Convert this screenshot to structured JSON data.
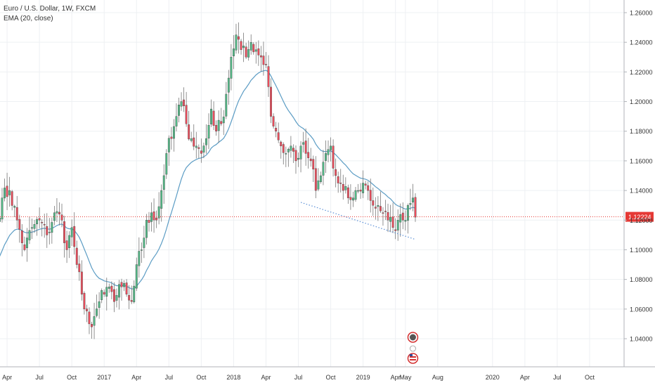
{
  "legend": {
    "title": "Euro / U.S. Dollar, 1W, FXCM",
    "indicator": "EMA (20, close)"
  },
  "colors": {
    "up": "#53b987",
    "down": "#eb4d5c",
    "ema": "#5b9cc4",
    "price_line": "#e53935",
    "trendline": "#5b8fd6",
    "grid": "#eef0f3",
    "axis_text": "#333333"
  },
  "chart_data": {
    "type": "candlestick",
    "symbol": "Euro / U.S. Dollar",
    "interval": "1W",
    "source": "FXCM",
    "ylim": [
      1.02,
      1.27
    ],
    "y_ticks": [
      1.26,
      1.24,
      1.22,
      1.2,
      1.18,
      1.16,
      1.14,
      1.12,
      1.1,
      1.08,
      1.06,
      1.04
    ],
    "y_tick_labels": [
      "1.26000",
      "1.24000",
      "1.22000",
      "1.20000",
      "1.18000",
      "1.16000",
      "1.14000",
      "1.12000",
      "1.10000",
      "1.08000",
      "1.06000",
      "1.04000"
    ],
    "x_ticks": [
      {
        "label": "Apr",
        "week": 4
      },
      {
        "label": "Jul",
        "week": 17
      },
      {
        "label": "Oct",
        "week": 30
      },
      {
        "label": "2017",
        "week": 43
      },
      {
        "label": "Apr",
        "week": 56
      },
      {
        "label": "Jul",
        "week": 69
      },
      {
        "label": "Oct",
        "week": 82
      },
      {
        "label": "2018",
        "week": 95
      },
      {
        "label": "Apr",
        "week": 108
      },
      {
        "label": "Jul",
        "week": 121
      },
      {
        "label": "Oct",
        "week": 134
      },
      {
        "label": "2019",
        "week": 147
      },
      {
        "label": "Apr",
        "week": 160
      },
      {
        "label": "May",
        "week": 164
      },
      {
        "label": "Aug",
        "week": 177
      },
      {
        "label": "2020",
        "week": 199
      },
      {
        "label": "Apr",
        "week": 212
      },
      {
        "label": "Jul",
        "week": 225
      },
      {
        "label": "Oct",
        "week": 238
      }
    ],
    "x_range_weeks": [
      2,
      251
    ],
    "last_price": 1.12224,
    "last_price_label": "1.12224",
    "close_anchors": [
      [
        0,
        1.12
      ],
      [
        2,
        1.135
      ],
      [
        5,
        1.14
      ],
      [
        8,
        1.12
      ],
      [
        11,
        1.1
      ],
      [
        14,
        1.115
      ],
      [
        17,
        1.12
      ],
      [
        20,
        1.11
      ],
      [
        23,
        1.125
      ],
      [
        26,
        1.12
      ],
      [
        28,
        1.1
      ],
      [
        30,
        1.115
      ],
      [
        32,
        1.09
      ],
      [
        34,
        1.07
      ],
      [
        35,
        1.06
      ],
      [
        37,
        1.05
      ],
      [
        39,
        1.055
      ],
      [
        41,
        1.065
      ],
      [
        43,
        1.07
      ],
      [
        45,
        1.075
      ],
      [
        47,
        1.065
      ],
      [
        50,
        1.075
      ],
      [
        52,
        1.07
      ],
      [
        54,
        1.065
      ],
      [
        56,
        1.09
      ],
      [
        58,
        1.1
      ],
      [
        60,
        1.12
      ],
      [
        62,
        1.125
      ],
      [
        64,
        1.12
      ],
      [
        66,
        1.14
      ],
      [
        68,
        1.165
      ],
      [
        70,
        1.175
      ],
      [
        72,
        1.19
      ],
      [
        74,
        1.2
      ],
      [
        76,
        1.185
      ],
      [
        78,
        1.175
      ],
      [
        80,
        1.17
      ],
      [
        82,
        1.165
      ],
      [
        84,
        1.175
      ],
      [
        86,
        1.195
      ],
      [
        88,
        1.18
      ],
      [
        90,
        1.185
      ],
      [
        92,
        1.205
      ],
      [
        94,
        1.23
      ],
      [
        96,
        1.245
      ],
      [
        98,
        1.235
      ],
      [
        100,
        1.23
      ],
      [
        102,
        1.24
      ],
      [
        104,
        1.235
      ],
      [
        106,
        1.23
      ],
      [
        108,
        1.225
      ],
      [
        109,
        1.21
      ],
      [
        110,
        1.19
      ],
      [
        112,
        1.18
      ],
      [
        114,
        1.17
      ],
      [
        116,
        1.165
      ],
      [
        118,
        1.17
      ],
      [
        120,
        1.16
      ],
      [
        122,
        1.17
      ],
      [
        124,
        1.165
      ],
      [
        126,
        1.16
      ],
      [
        128,
        1.14
      ],
      [
        130,
        1.15
      ],
      [
        132,
        1.165
      ],
      [
        134,
        1.17
      ],
      [
        135,
        1.155
      ],
      [
        137,
        1.145
      ],
      [
        139,
        1.14
      ],
      [
        141,
        1.135
      ],
      [
        143,
        1.135
      ],
      [
        145,
        1.14
      ],
      [
        147,
        1.145
      ],
      [
        149,
        1.14
      ],
      [
        151,
        1.13
      ],
      [
        153,
        1.13
      ],
      [
        155,
        1.125
      ],
      [
        157,
        1.12
      ],
      [
        159,
        1.115
      ],
      [
        161,
        1.12
      ],
      [
        163,
        1.12
      ],
      [
        165,
        1.13
      ],
      [
        167,
        1.135
      ],
      [
        168,
        1.122
      ]
    ],
    "ema_period": 20,
    "trendline": {
      "from": [
        122,
        1.132
      ],
      "to": [
        168,
        1.107
      ]
    },
    "event_markers_week": 167
  }
}
